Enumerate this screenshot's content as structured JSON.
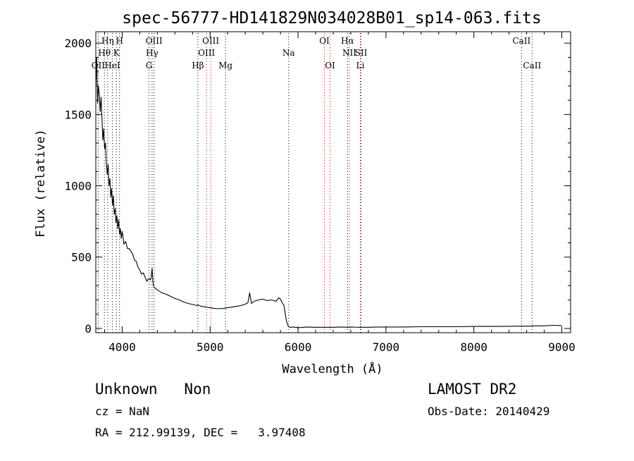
{
  "chart_data": {
    "type": "line",
    "title": "spec-56777-HD141829N034028B01_sp14-063.fits",
    "xlabel": "Wavelength (Å)",
    "ylabel": "Flux (relative)",
    "xlim": [
      3700,
      9100
    ],
    "ylim": [
      -30,
      2080
    ],
    "x_ticks": [
      4000,
      5000,
      6000,
      7000,
      8000,
      9000
    ],
    "y_ticks": [
      0,
      500,
      1000,
      1500,
      2000
    ],
    "grid": false,
    "series": [
      {
        "values_x": [
          3700,
          3710,
          3720,
          3730,
          3740,
          3750,
          3760,
          3770,
          3780,
          3790,
          3800,
          3810,
          3820,
          3830,
          3840,
          3850,
          3860,
          3870,
          3880,
          3890,
          3900,
          3910,
          3920,
          3930,
          3940,
          3950,
          3960,
          3970,
          3980,
          3990,
          4000,
          4010,
          4020,
          4040,
          4060,
          4080,
          4100,
          4120,
          4140,
          4160,
          4180,
          4200,
          4220,
          4240,
          4260,
          4280,
          4300,
          4320,
          4330,
          4340,
          4350,
          4360,
          4380,
          4400,
          4450,
          4500,
          4550,
          4600,
          4650,
          4700,
          4750,
          4800,
          4850,
          4861,
          4900,
          4950,
          5000,
          5050,
          5100,
          5150,
          5200,
          5250,
          5300,
          5350,
          5400,
          5430,
          5450,
          5470,
          5500,
          5550,
          5600,
          5650,
          5700,
          5750,
          5780,
          5800,
          5820,
          5840,
          5850,
          5860,
          5870,
          5880,
          5890,
          5900,
          5920,
          5950,
          6000,
          6100,
          6200,
          6300,
          6400,
          6500,
          6563,
          6600,
          6700,
          6800,
          6900,
          7000,
          7200,
          7400,
          7600,
          7800,
          8000,
          8200,
          8400,
          8500,
          8600,
          8700,
          8800,
          8900,
          9000
        ],
        "values_y": [
          1700,
          1900,
          1580,
          1700,
          1640,
          1520,
          1620,
          1480,
          1320,
          1400,
          1260,
          1300,
          1160,
          1080,
          1150,
          1000,
          1050,
          920,
          980,
          860,
          930,
          800,
          840,
          740,
          790,
          700,
          760,
          660,
          700,
          630,
          680,
          640,
          590,
          610,
          560,
          560,
          540,
          520,
          480,
          470,
          430,
          410,
          380,
          390,
          360,
          330,
          350,
          340,
          360,
          420,
          330,
          290,
          280,
          270,
          250,
          240,
          225,
          210,
          200,
          185,
          175,
          168,
          160,
          165,
          155,
          150,
          145,
          140,
          138,
          140,
          145,
          150,
          155,
          160,
          170,
          180,
          250,
          175,
          190,
          200,
          205,
          195,
          200,
          190,
          215,
          205,
          180,
          160,
          120,
          80,
          50,
          30,
          15,
          10,
          8,
          10,
          5,
          10,
          8,
          8,
          8,
          10,
          8,
          10,
          8,
          8,
          10,
          10,
          10,
          12,
          12,
          12,
          14,
          14,
          15,
          16,
          16,
          18,
          18,
          22,
          20
        ]
      }
    ],
    "line_markers": [
      {
        "label": "Hη",
        "x": 3835,
        "row": 0,
        "color": "#000000"
      },
      {
        "label": "H",
        "x": 3970,
        "row": 0,
        "color": "#000000"
      },
      {
        "label": "Hθ",
        "x": 3798,
        "row": 1,
        "color": "#000000"
      },
      {
        "label": "K",
        "x": 3934,
        "row": 1,
        "color": "#000000"
      },
      {
        "label": "OII",
        "x": 3727,
        "row": 2,
        "color": "#000000"
      },
      {
        "label": "HeI",
        "x": 3889,
        "row": 2,
        "color": "#000000"
      },
      {
        "label": "OIII",
        "x": 4363,
        "row": 0,
        "color": "#000000"
      },
      {
        "label": "Hγ",
        "x": 4340,
        "row": 1,
        "color": "#000000"
      },
      {
        "label": "G",
        "x": 4305,
        "row": 2,
        "color": "#000000"
      },
      {
        "label": "OIII",
        "x": 5007,
        "row": 0,
        "color": "#cc0000"
      },
      {
        "label": "OIII",
        "x": 4959,
        "row": 1,
        "color": "#cc0000"
      },
      {
        "label": "Hβ",
        "x": 4861,
        "row": 2,
        "color": "#000000"
      },
      {
        "label": "Mg",
        "x": 5175,
        "row": 2,
        "color": "#000000"
      },
      {
        "label": "Na",
        "x": 5893,
        "row": 1,
        "color": "#000000"
      },
      {
        "label": "OI",
        "x": 6300,
        "row": 0,
        "color": "#cc0000"
      },
      {
        "label": "OI",
        "x": 6364,
        "row": 2,
        "color": "#cc0000"
      },
      {
        "label": "Hα",
        "x": 6563,
        "row": 0,
        "color": "#000000"
      },
      {
        "label": "NII",
        "x": 6584,
        "row": 1,
        "color": "#cc0000"
      },
      {
        "label": "SII",
        "x": 6717,
        "row": 1,
        "color": "#cc0000"
      },
      {
        "label": "Li",
        "x": 6708,
        "row": 2,
        "color": "#000000"
      },
      {
        "label": "CaII",
        "x": 8542,
        "row": 0,
        "color": "#000000"
      },
      {
        "label": "CaII",
        "x": 8662,
        "row": 2,
        "color": "#000000"
      }
    ]
  },
  "footer": {
    "class_line": "Unknown   Non",
    "survey": "LAMOST DR2",
    "cz": "cz = NaN",
    "obs_date": "Obs-Date: 20140429",
    "coords": "RA = 212.99139, DEC =   3.97408"
  }
}
